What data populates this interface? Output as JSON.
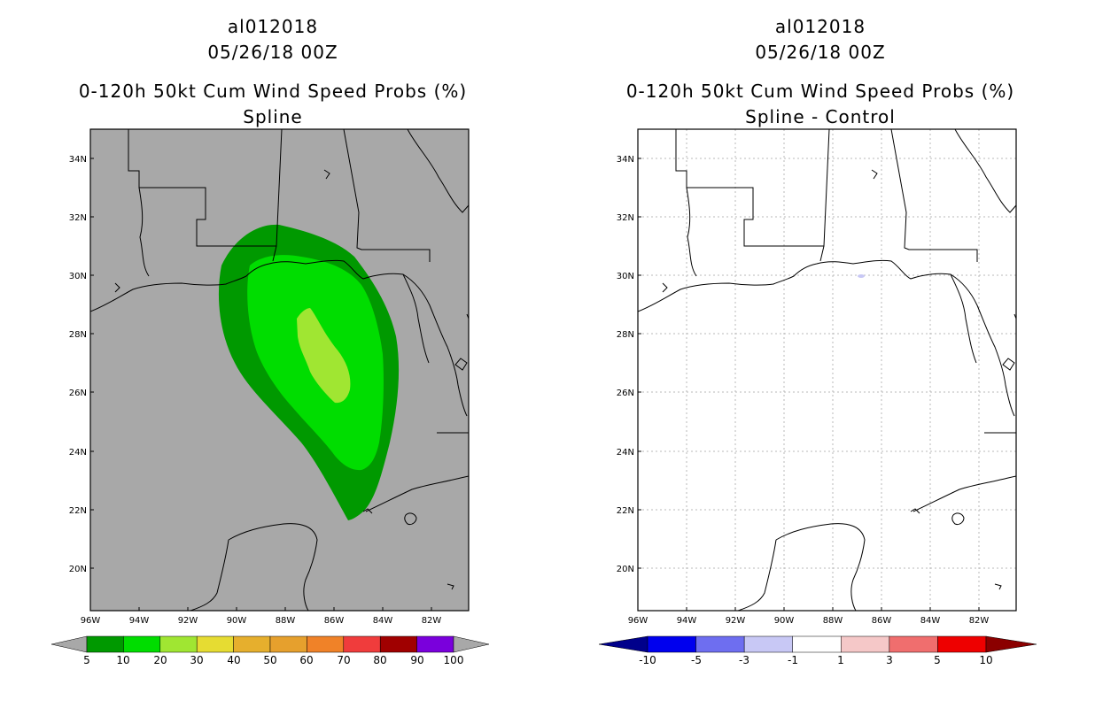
{
  "chart_data": [
    {
      "type": "heatmap",
      "storm_id": "al012018",
      "datetime": "05/26/18 00Z",
      "title": "0-120h 50kt Cum Wind Speed Probs (%)",
      "subtitle": "Spline",
      "x_ticks": [
        "96W",
        "94W",
        "92W",
        "90W",
        "88W",
        "86W",
        "84W",
        "82W"
      ],
      "y_ticks": [
        "34N",
        "32N",
        "30N",
        "28N",
        "26N",
        "24N",
        "22N",
        "20N"
      ],
      "lon_range": [
        -96,
        -80.6
      ],
      "lat_range": [
        18.7,
        35
      ],
      "contour_levels": [
        5,
        10,
        20
      ],
      "colorbar": {
        "labels": [
          "5",
          "10",
          "20",
          "30",
          "40",
          "50",
          "60",
          "70",
          "80",
          "90",
          "100"
        ],
        "colors": [
          "#009900",
          "#00dd00",
          "#a0e632",
          "#e6dc32",
          "#e6af2d",
          "#e6a02d",
          "#f08228",
          "#f03c3c",
          "#a00000",
          "#7a00dc"
        ],
        "end_low": "#a8a8a8",
        "end_high": "#a8a8a8"
      }
    },
    {
      "type": "heatmap",
      "storm_id": "al012018",
      "datetime": "05/26/18 00Z",
      "title": "0-120h 50kt Cum Wind Speed Probs (%)",
      "subtitle": "Spline - Control",
      "x_ticks": [
        "96W",
        "94W",
        "92W",
        "90W",
        "88W",
        "86W",
        "84W",
        "82W"
      ],
      "y_ticks": [
        "34N",
        "32N",
        "30N",
        "28N",
        "26N",
        "24N",
        "22N",
        "20N"
      ],
      "lon_range": [
        -96,
        -80.6
      ],
      "lat_range": [
        18.7,
        35
      ],
      "colorbar": {
        "labels": [
          "-10",
          "-5",
          "-3",
          "-1",
          "1",
          "3",
          "5",
          "10"
        ],
        "colors": [
          "#0000ee",
          "#6e6ef0",
          "#c8c8f5",
          "#ffffff",
          "#f5c8c8",
          "#f06e6e",
          "#ee0000"
        ],
        "end_low": "#00008b",
        "end_high": "#8b0000"
      }
    }
  ]
}
